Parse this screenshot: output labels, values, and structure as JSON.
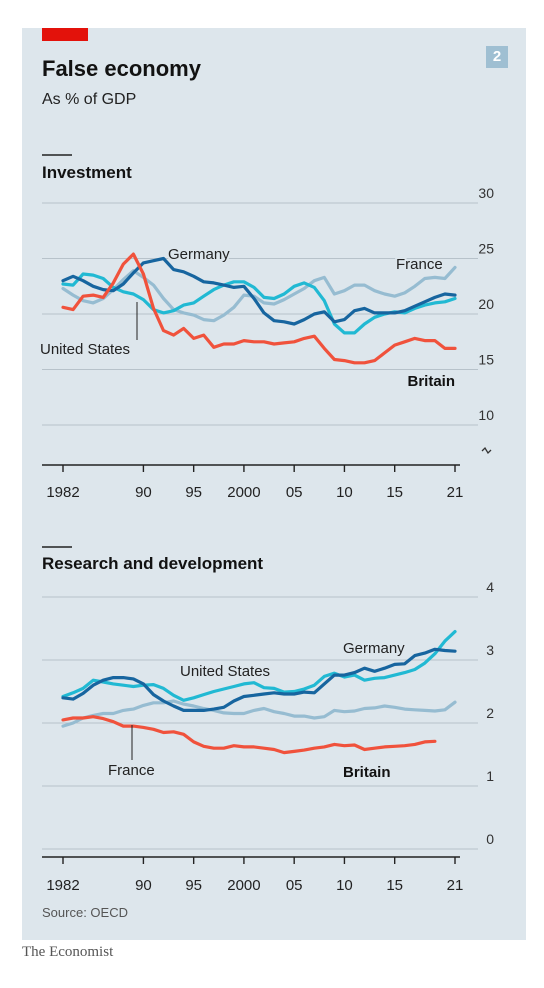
{
  "header": {
    "title": "False economy",
    "subtitle": "As % of GDP",
    "badge": "2"
  },
  "source": "Source: OECD",
  "footer": "The Economist",
  "colors": {
    "britain": "#f0523c",
    "france": "#96bcd1",
    "germany": "#17659f",
    "united_states": "#21b9d3",
    "accent": "#e3120b"
  },
  "chart_data": [
    {
      "type": "line",
      "title": "Investment",
      "xlim": [
        1982,
        2021
      ],
      "ylim": [
        10,
        30
      ],
      "x_ticks": [
        "1982",
        "90",
        "95",
        "2000",
        "05",
        "10",
        "15",
        "21"
      ],
      "y_ticks": [
        "10",
        "15",
        "20",
        "25",
        "30"
      ],
      "series": [
        {
          "name": "Britain",
          "color": "#f0523c",
          "x": [
            1982,
            1983,
            1984,
            1985,
            1986,
            1987,
            1988,
            1989,
            1990,
            1991,
            1992,
            1993,
            1994,
            1995,
            1996,
            1997,
            1998,
            1999,
            2000,
            2001,
            2002,
            2003,
            2004,
            2005,
            2006,
            2007,
            2008,
            2009,
            2010,
            2011,
            2012,
            2013,
            2014,
            2015,
            2016,
            2017,
            2018,
            2019,
            2020,
            2021
          ],
          "y": [
            20.6,
            20.4,
            21.6,
            21.7,
            21.5,
            22.8,
            24.5,
            25.4,
            23.6,
            20.5,
            18.5,
            18.1,
            18.7,
            17.8,
            18.1,
            17.0,
            17.3,
            17.3,
            17.6,
            17.5,
            17.5,
            17.3,
            17.4,
            17.5,
            17.8,
            18.0,
            16.9,
            15.9,
            15.8,
            15.6,
            15.6,
            15.8,
            16.5,
            17.2,
            17.5,
            17.8,
            17.6,
            17.6,
            16.9,
            16.9
          ]
        },
        {
          "name": "France",
          "color": "#96bcd1",
          "x": [
            1982,
            1983,
            1984,
            1985,
            1986,
            1987,
            1988,
            1989,
            1990,
            1991,
            1992,
            1993,
            1994,
            1995,
            1996,
            1997,
            1998,
            1999,
            2000,
            2001,
            2002,
            2003,
            2004,
            2005,
            2006,
            2007,
            2008,
            2009,
            2010,
            2011,
            2012,
            2013,
            2014,
            2015,
            2016,
            2017,
            2018,
            2019,
            2020,
            2021
          ],
          "y": [
            22.3,
            21.7,
            21.2,
            21.0,
            21.4,
            22.2,
            23.1,
            23.9,
            23.3,
            22.6,
            21.4,
            20.4,
            20.1,
            19.9,
            19.5,
            19.4,
            19.9,
            20.6,
            21.7,
            21.6,
            21.0,
            20.9,
            21.3,
            21.8,
            22.3,
            23.0,
            23.3,
            21.8,
            22.1,
            22.6,
            22.6,
            22.1,
            21.8,
            21.6,
            21.9,
            22.5,
            23.2,
            23.3,
            23.2,
            24.2
          ]
        },
        {
          "name": "Germany",
          "color": "#17659f",
          "x": [
            1982,
            1983,
            1984,
            1985,
            1986,
            1987,
            1988,
            1989,
            1990,
            1991,
            1992,
            1993,
            1994,
            1995,
            1996,
            1997,
            1998,
            1999,
            2000,
            2001,
            2002,
            2003,
            2004,
            2005,
            2006,
            2007,
            2008,
            2009,
            2010,
            2011,
            2012,
            2013,
            2014,
            2015,
            2016,
            2017,
            2018,
            2019,
            2020,
            2021
          ],
          "y": [
            23.0,
            23.4,
            23.0,
            22.5,
            22.2,
            22.1,
            22.7,
            23.7,
            24.6,
            24.8,
            25.0,
            24.0,
            23.8,
            23.4,
            22.9,
            22.8,
            22.6,
            22.4,
            22.5,
            21.4,
            20.1,
            19.4,
            19.3,
            19.1,
            19.5,
            20.0,
            20.2,
            19.3,
            19.5,
            20.3,
            20.5,
            20.1,
            20.1,
            20.1,
            20.3,
            20.7,
            21.1,
            21.5,
            21.8,
            21.7
          ]
        },
        {
          "name": "United States",
          "color": "#21b9d3",
          "x": [
            1982,
            1983,
            1984,
            1985,
            1986,
            1987,
            1988,
            1989,
            1990,
            1991,
            1992,
            1993,
            1994,
            1995,
            1996,
            1997,
            1998,
            1999,
            2000,
            2001,
            2002,
            2003,
            2004,
            2005,
            2006,
            2007,
            2008,
            2009,
            2010,
            2011,
            2012,
            2013,
            2014,
            2015,
            2016,
            2017,
            2018,
            2019,
            2020,
            2021
          ],
          "y": [
            22.7,
            22.6,
            23.6,
            23.5,
            23.2,
            22.4,
            22.0,
            21.8,
            21.3,
            20.4,
            20.1,
            20.3,
            20.8,
            21.0,
            21.6,
            22.2,
            22.6,
            22.9,
            22.9,
            22.4,
            21.5,
            21.4,
            21.8,
            22.5,
            22.8,
            22.4,
            21.2,
            19.1,
            18.3,
            18.3,
            19.1,
            19.7,
            20.0,
            20.2,
            20.1,
            20.5,
            20.8,
            21.0,
            21.1,
            21.4
          ]
        }
      ],
      "annotations": [
        "Germany",
        "France",
        "United States",
        "Britain"
      ]
    },
    {
      "type": "line",
      "title": "Research and development",
      "xlim": [
        1982,
        2021
      ],
      "ylim": [
        0,
        4
      ],
      "x_ticks": [
        "1982",
        "90",
        "95",
        "2000",
        "05",
        "10",
        "15",
        "21"
      ],
      "y_ticks": [
        "0",
        "1",
        "2",
        "3",
        "4"
      ],
      "series": [
        {
          "name": "Britain",
          "color": "#f0523c",
          "x": [
            1982,
            1983,
            1984,
            1985,
            1986,
            1987,
            1988,
            1989,
            1990,
            1991,
            1992,
            1993,
            1994,
            1995,
            1996,
            1997,
            1998,
            1999,
            2000,
            2001,
            2002,
            2003,
            2004,
            2005,
            2006,
            2007,
            2008,
            2009,
            2010,
            2011,
            2012,
            2013,
            2014,
            2015,
            2016,
            2017,
            2018,
            2019
          ],
          "y": [
            2.05,
            2.08,
            2.08,
            2.1,
            2.07,
            2.02,
            1.95,
            1.95,
            1.93,
            1.9,
            1.85,
            1.86,
            1.82,
            1.7,
            1.63,
            1.6,
            1.6,
            1.64,
            1.62,
            1.62,
            1.6,
            1.58,
            1.53,
            1.55,
            1.57,
            1.6,
            1.62,
            1.66,
            1.64,
            1.65,
            1.58,
            1.6,
            1.62,
            1.63,
            1.64,
            1.66,
            1.7,
            1.71
          ]
        },
        {
          "name": "France",
          "color": "#96bcd1",
          "x": [
            1982,
            1983,
            1984,
            1985,
            1986,
            1987,
            1988,
            1989,
            1990,
            1991,
            1992,
            1993,
            1994,
            1995,
            1996,
            1997,
            1998,
            1999,
            2000,
            2001,
            2002,
            2003,
            2004,
            2005,
            2006,
            2007,
            2008,
            2009,
            2010,
            2011,
            2012,
            2013,
            2014,
            2015,
            2016,
            2017,
            2018,
            2019,
            2020,
            2021
          ],
          "y": [
            1.95,
            2.0,
            2.08,
            2.12,
            2.15,
            2.15,
            2.2,
            2.22,
            2.28,
            2.32,
            2.32,
            2.35,
            2.3,
            2.27,
            2.23,
            2.2,
            2.16,
            2.15,
            2.15,
            2.2,
            2.23,
            2.18,
            2.15,
            2.11,
            2.11,
            2.08,
            2.1,
            2.2,
            2.18,
            2.19,
            2.23,
            2.24,
            2.27,
            2.25,
            2.22,
            2.21,
            2.2,
            2.19,
            2.21,
            2.33
          ]
        },
        {
          "name": "Germany",
          "color": "#17659f",
          "x": [
            1982,
            1983,
            1984,
            1985,
            1986,
            1987,
            1988,
            1989,
            1990,
            1991,
            1992,
            1993,
            1994,
            1995,
            1996,
            1997,
            1998,
            1999,
            2000,
            2001,
            2002,
            2003,
            2004,
            2005,
            2006,
            2007,
            2008,
            2009,
            2010,
            2011,
            2012,
            2013,
            2014,
            2015,
            2016,
            2017,
            2018,
            2019,
            2020,
            2021
          ],
          "y": [
            2.4,
            2.38,
            2.47,
            2.6,
            2.68,
            2.72,
            2.72,
            2.7,
            2.62,
            2.45,
            2.35,
            2.27,
            2.2,
            2.2,
            2.2,
            2.22,
            2.25,
            2.35,
            2.42,
            2.44,
            2.46,
            2.48,
            2.46,
            2.46,
            2.49,
            2.48,
            2.62,
            2.76,
            2.76,
            2.8,
            2.87,
            2.82,
            2.87,
            2.93,
            2.94,
            3.07,
            3.11,
            3.17,
            3.15,
            3.14
          ]
        },
        {
          "name": "United States",
          "color": "#21b9d3",
          "x": [
            1982,
            1983,
            1984,
            1985,
            1986,
            1987,
            1988,
            1989,
            1990,
            1991,
            1992,
            1993,
            1994,
            1995,
            1996,
            1997,
            1998,
            1999,
            2000,
            2001,
            2002,
            2003,
            2004,
            2005,
            2006,
            2007,
            2008,
            2009,
            2010,
            2011,
            2012,
            2013,
            2014,
            2015,
            2016,
            2017,
            2018,
            2019,
            2020,
            2021
          ],
          "y": [
            2.42,
            2.48,
            2.55,
            2.68,
            2.65,
            2.62,
            2.6,
            2.58,
            2.6,
            2.61,
            2.55,
            2.44,
            2.36,
            2.4,
            2.45,
            2.5,
            2.54,
            2.58,
            2.62,
            2.64,
            2.56,
            2.55,
            2.49,
            2.5,
            2.54,
            2.6,
            2.74,
            2.79,
            2.73,
            2.76,
            2.68,
            2.71,
            2.72,
            2.76,
            2.8,
            2.85,
            2.95,
            3.1,
            3.3,
            3.45
          ]
        }
      ],
      "annotations": [
        "Germany",
        "United States",
        "France",
        "Britain"
      ]
    }
  ]
}
